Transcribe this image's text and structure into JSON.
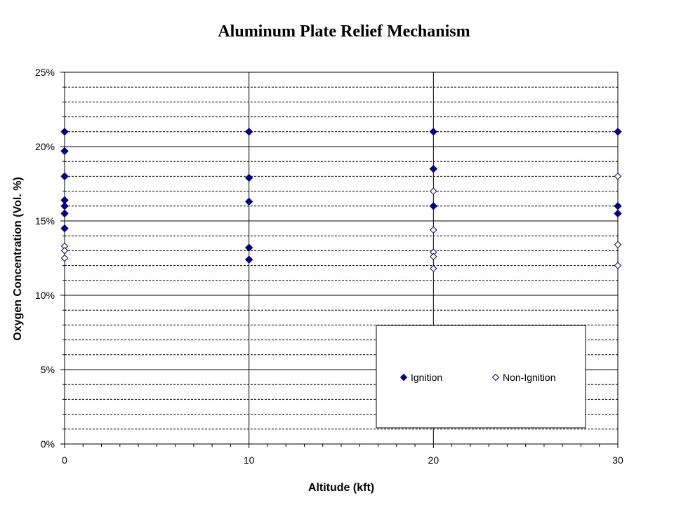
{
  "chart_data": {
    "type": "scatter",
    "title": "Aluminum Plate Relief Mechanism",
    "xlabel": "Altitude (kft)",
    "ylabel": "Oxygen Concentration (Vol. %)",
    "xlim": [
      0,
      30
    ],
    "ylim": [
      0,
      25
    ],
    "x_ticks": [
      0,
      10,
      20,
      30
    ],
    "x_tick_labels": [
      "0",
      "10",
      "20",
      "30"
    ],
    "y_ticks": [
      0,
      5,
      10,
      15,
      20,
      25
    ],
    "y_tick_labels": [
      "0%",
      "5%",
      "10%",
      "15%",
      "20%",
      "25%"
    ],
    "grid": true,
    "legend_position": "lower-right",
    "series": [
      {
        "name": "Ignition",
        "marker": "filled-diamond",
        "color": "#000080",
        "points": [
          {
            "x": 0,
            "y": 21.0
          },
          {
            "x": 0,
            "y": 19.7
          },
          {
            "x": 0,
            "y": 18.0
          },
          {
            "x": 0,
            "y": 16.4
          },
          {
            "x": 0,
            "y": 16.0
          },
          {
            "x": 0,
            "y": 15.5
          },
          {
            "x": 0,
            "y": 14.5
          },
          {
            "x": 10,
            "y": 21.0
          },
          {
            "x": 10,
            "y": 17.9
          },
          {
            "x": 10,
            "y": 16.3
          },
          {
            "x": 10,
            "y": 13.2
          },
          {
            "x": 10,
            "y": 12.4
          },
          {
            "x": 20,
            "y": 21.0
          },
          {
            "x": 20,
            "y": 18.5
          },
          {
            "x": 20,
            "y": 16.0
          },
          {
            "x": 30,
            "y": 21.0
          },
          {
            "x": 30,
            "y": 16.0
          },
          {
            "x": 30,
            "y": 15.5
          }
        ]
      },
      {
        "name": "Non-Ignition",
        "marker": "open-diamond",
        "color": "#000080",
        "points": [
          {
            "x": 0,
            "y": 13.3
          },
          {
            "x": 0,
            "y": 13.0
          },
          {
            "x": 0,
            "y": 12.5
          },
          {
            "x": 20,
            "y": 17.0
          },
          {
            "x": 20,
            "y": 14.4
          },
          {
            "x": 20,
            "y": 12.9
          },
          {
            "x": 20,
            "y": 12.6
          },
          {
            "x": 20,
            "y": 11.8
          },
          {
            "x": 30,
            "y": 18.0
          },
          {
            "x": 30,
            "y": 13.4
          },
          {
            "x": 30,
            "y": 12.0
          }
        ]
      }
    ]
  },
  "colors": {
    "marker": "#000080",
    "grid_major": "#000000",
    "grid_minor": "#000000",
    "background": "#ffffff"
  }
}
